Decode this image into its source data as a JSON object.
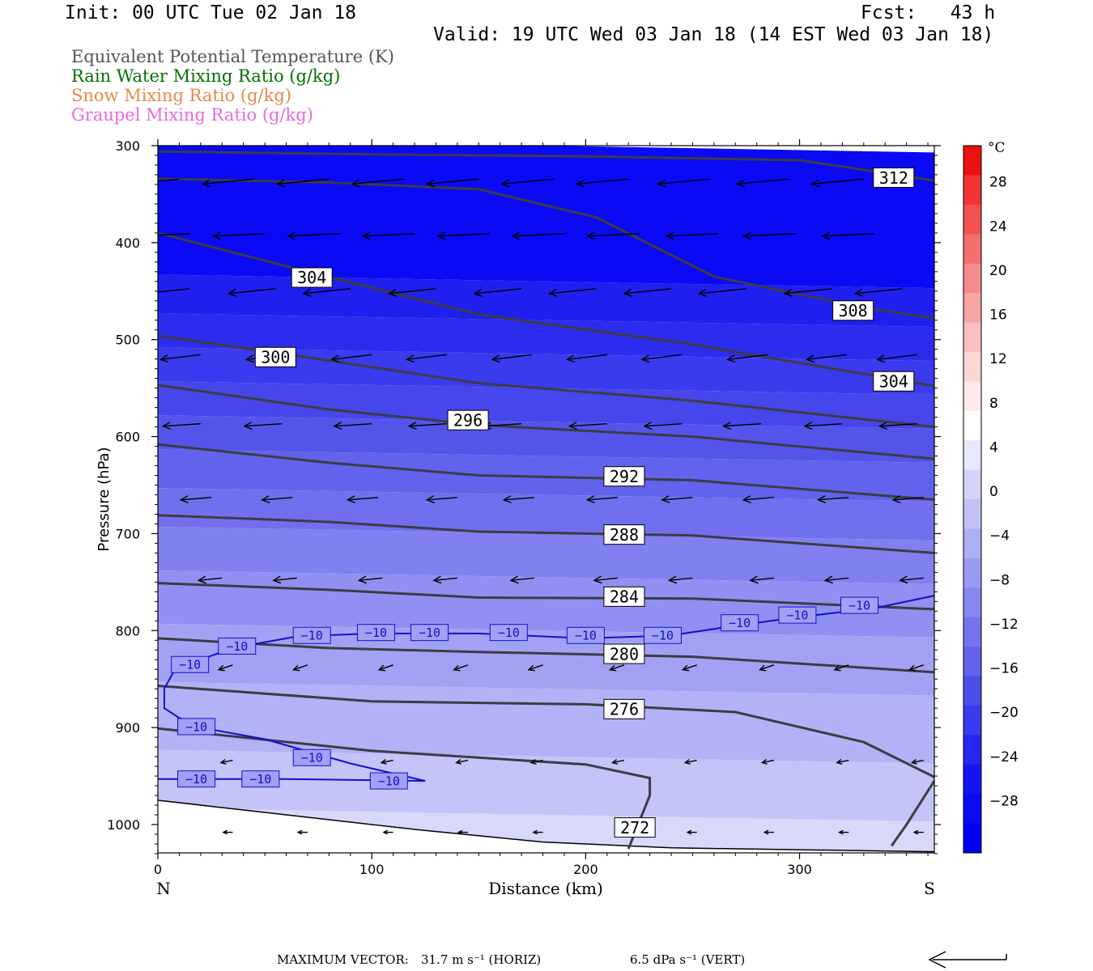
{
  "header": {
    "init": "Init: 00 UTC Tue 02 Jan 18",
    "fcst": "Fcst:   43 h",
    "valid": "Valid: 19 UTC Wed 03 Jan 18 (14 EST Wed 03 Jan 18)"
  },
  "legend": [
    {
      "label": "Equivalent Potential Temperature (K)",
      "color": "#555555"
    },
    {
      "label": "Rain Water Mixing Ratio (g/kg)",
      "color": "#007000"
    },
    {
      "label": "Snow Mixing Ratio (g/kg)",
      "color": "#e88848"
    },
    {
      "label": "Graupel Mixing Ratio (g/kg)",
      "color": "#e86ae0"
    }
  ],
  "footer": {
    "max_vector_label": "MAXIMUM VECTOR:",
    "horiz": "31.7 m s⁻¹ (HORIZ)",
    "vert": "6.5 dPa s⁻¹ (VERT)"
  },
  "chart_data": {
    "type": "heatmap",
    "xlabel": "Distance (km)",
    "ylabel": "Pressure (hPa)",
    "x_range": [
      0,
      363
    ],
    "y_range": [
      300,
      1030
    ],
    "x_ticks": [
      0,
      100,
      200,
      300
    ],
    "y_ticks": [
      300,
      400,
      500,
      600,
      700,
      800,
      900,
      1000
    ],
    "x_end_labels": {
      "left": "N",
      "right": "S"
    },
    "colorbar": {
      "unit": "°C",
      "labels": [
        28,
        24,
        20,
        16,
        12,
        8,
        4,
        0,
        -4,
        -8,
        -12,
        -16,
        -20,
        -24,
        -28
      ],
      "colors": [
        "#ee1010",
        "#f03434",
        "#f25252",
        "#f46e6e",
        "#f58a8a",
        "#f7a4a4",
        "#f9bebe",
        "#fbd6d6",
        "#fdeaea",
        "#ffffff",
        "#e8e8fc",
        "#d4d4f8",
        "#c2c2f6",
        "#aeaef4",
        "#9a9af2",
        "#8888f0",
        "#7474ee",
        "#6262ec",
        "#4e4eea",
        "#3a3aee",
        "#2626f0",
        "#1414f2",
        "#0a0af4",
        "#0000f6"
      ]
    },
    "background_temperature_bands": [
      {
        "p_top": 300,
        "p_bot": 440,
        "temp": -30,
        "color": "#0a0af4"
      },
      {
        "p_top": 440,
        "p_bot": 480,
        "temp": -28,
        "color": "#1f1ff0"
      },
      {
        "p_top": 480,
        "p_bot": 515,
        "temp": -26,
        "color": "#2c2cee"
      },
      {
        "p_top": 515,
        "p_bot": 550,
        "temp": -24,
        "color": "#3a3aee"
      },
      {
        "p_top": 550,
        "p_bot": 585,
        "temp": -22,
        "color": "#4646ec"
      },
      {
        "p_top": 585,
        "p_bot": 620,
        "temp": -20,
        "color": "#5454ea"
      },
      {
        "p_top": 620,
        "p_bot": 660,
        "temp": -18,
        "color": "#6262ec"
      },
      {
        "p_top": 660,
        "p_bot": 700,
        "temp": -16,
        "color": "#7070ee"
      },
      {
        "p_top": 700,
        "p_bot": 745,
        "temp": -14,
        "color": "#8080f0"
      },
      {
        "p_top": 745,
        "p_bot": 800,
        "temp": -12,
        "color": "#9090f2"
      },
      {
        "p_top": 800,
        "p_bot": 860,
        "temp": -10,
        "color": "#a2a2f4"
      },
      {
        "p_top": 860,
        "p_bot": 930,
        "temp": -8,
        "color": "#b2b2f6"
      },
      {
        "p_top": 930,
        "p_bot": 990,
        "temp": -6,
        "color": "#c4c4f8"
      },
      {
        "p_top": 990,
        "p_bot": 1030,
        "temp": -4,
        "color": "#d8d8fa"
      }
    ],
    "theta_e_contours": [
      {
        "value": 312,
        "points": [
          [
            0,
            306
          ],
          [
            100,
            309
          ],
          [
            200,
            311
          ],
          [
            300,
            315
          ],
          [
            363,
            336
          ]
        ],
        "label": "312",
        "label_pos": [
          344,
          333
        ]
      },
      {
        "value": 308,
        "points": [
          [
            0,
            334
          ],
          [
            80,
            338
          ],
          [
            150,
            345
          ],
          [
            205,
            374
          ],
          [
            260,
            435
          ],
          [
            330,
            467
          ],
          [
            363,
            478
          ]
        ],
        "label": "308",
        "label_pos": [
          325,
          470
        ]
      },
      {
        "value": 304,
        "points": [
          [
            0,
            390
          ],
          [
            70,
            430
          ],
          [
            150,
            474
          ],
          [
            250,
            505
          ],
          [
            363,
            548
          ]
        ],
        "label": "304",
        "label_pos": [
          72,
          436
        ],
        "label2": "304",
        "label2_pos": [
          344,
          543
        ]
      },
      {
        "value": 300,
        "points": [
          [
            0,
            496
          ],
          [
            60,
            515
          ],
          [
            150,
            545
          ],
          [
            250,
            563
          ],
          [
            363,
            590
          ]
        ],
        "label": "300",
        "label_pos": [
          55,
          518
        ]
      },
      {
        "value": 296,
        "points": [
          [
            0,
            547
          ],
          [
            80,
            572
          ],
          [
            150,
            588
          ],
          [
            250,
            600
          ],
          [
            363,
            623
          ]
        ],
        "label": "296",
        "label_pos": [
          145,
          583
        ]
      },
      {
        "value": 292,
        "points": [
          [
            0,
            608
          ],
          [
            80,
            627
          ],
          [
            150,
            640
          ],
          [
            250,
            645
          ],
          [
            363,
            665
          ]
        ],
        "label": "292",
        "label_pos": [
          218,
          641
        ]
      },
      {
        "value": 288,
        "points": [
          [
            0,
            681
          ],
          [
            80,
            688
          ],
          [
            150,
            698
          ],
          [
            250,
            702
          ],
          [
            363,
            720
          ]
        ],
        "label": "288",
        "label_pos": [
          218,
          701
        ]
      },
      {
        "value": 284,
        "points": [
          [
            0,
            751
          ],
          [
            80,
            758
          ],
          [
            150,
            766
          ],
          [
            250,
            767
          ],
          [
            363,
            778
          ]
        ],
        "label": "284",
        "label_pos": [
          218,
          765
        ]
      },
      {
        "value": 280,
        "points": [
          [
            0,
            808
          ],
          [
            80,
            818
          ],
          [
            150,
            822
          ],
          [
            250,
            827
          ],
          [
            363,
            843
          ]
        ],
        "label": "280",
        "label_pos": [
          218,
          824
        ]
      },
      {
        "value": 276,
        "points": [
          [
            0,
            857
          ],
          [
            100,
            873
          ],
          [
            200,
            876
          ],
          [
            270,
            884
          ],
          [
            330,
            915
          ],
          [
            363,
            951
          ]
        ],
        "label": "276",
        "label_pos": [
          218,
          881
        ]
      },
      {
        "value": 272,
        "points": [
          [
            0,
            901
          ],
          [
            100,
            924
          ],
          [
            200,
            938
          ],
          [
            230,
            952
          ],
          [
            230,
            970
          ],
          [
            220,
            1025
          ]
        ],
        "label": "272",
        "label_pos": [
          223,
          1003
        ]
      },
      {
        "value": 272,
        "points": [
          [
            363,
            955
          ],
          [
            350,
            1000
          ],
          [
            343,
            1022
          ]
        ],
        "label": "",
        "label_pos": null
      }
    ],
    "isotherm_minus10": {
      "value": -10,
      "upper_points": [
        [
          3,
          860
        ],
        [
          8,
          840
        ],
        [
          20,
          830
        ],
        [
          35,
          818
        ],
        [
          65,
          806
        ],
        [
          100,
          803
        ],
        [
          150,
          803
        ],
        [
          200,
          808
        ],
        [
          240,
          805
        ],
        [
          270,
          795
        ],
        [
          300,
          786
        ],
        [
          335,
          777
        ],
        [
          363,
          764
        ]
      ],
      "lower_points_a": [
        [
          3,
          860
        ],
        [
          3,
          880
        ],
        [
          10,
          890
        ],
        [
          20,
          900
        ],
        [
          50,
          912
        ],
        [
          90,
          937
        ],
        [
          125,
          955
        ]
      ],
      "lower_points_b": [
        [
          0,
          953
        ],
        [
          60,
          953
        ],
        [
          125,
          955
        ]
      ],
      "labels": [
        [
          15,
          835
        ],
        [
          37,
          816
        ],
        [
          72,
          805
        ],
        [
          102,
          802
        ],
        [
          127,
          802
        ],
        [
          164,
          802
        ],
        [
          200,
          805
        ],
        [
          236,
          805
        ],
        [
          272,
          792
        ],
        [
          299,
          784
        ],
        [
          328,
          774
        ],
        [
          18,
          899
        ],
        [
          72,
          931
        ],
        [
          18,
          953
        ],
        [
          48,
          953
        ],
        [
          108,
          955
        ]
      ]
    },
    "ground_line": [
      [
        0,
        975
      ],
      [
        60,
        990
      ],
      [
        120,
        1005
      ],
      [
        180,
        1018
      ],
      [
        240,
        1024
      ],
      [
        363,
        1028
      ]
    ],
    "wind_vectors": [
      {
        "p": 337,
        "xs": [
          10,
          45,
          80,
          115,
          150,
          185,
          220,
          258,
          295,
          330
        ],
        "du": -22,
        "dv": 2
      },
      {
        "p": 392,
        "xs": [
          15,
          50,
          85,
          120,
          155,
          190,
          225,
          262,
          298,
          335
        ],
        "du": -22,
        "dv": 1
      },
      {
        "p": 450,
        "xs": [
          15,
          55,
          90,
          130,
          170,
          205,
          240,
          275,
          315,
          348
        ],
        "du": -20,
        "dv": 2
      },
      {
        "p": 518,
        "xs": [
          20,
          60,
          100,
          135,
          175,
          210,
          245,
          285,
          322,
          355
        ],
        "du": -17,
        "dv": 2
      },
      {
        "p": 588,
        "xs": [
          20,
          58,
          100,
          135,
          170,
          210,
          245,
          282,
          320,
          355
        ],
        "du": -16,
        "dv": 1
      },
      {
        "p": 664,
        "xs": [
          25,
          63,
          103,
          140,
          176,
          215,
          250,
          288,
          323,
          358
        ],
        "du": -13,
        "dv": 1
      },
      {
        "p": 747,
        "xs": [
          30,
          65,
          105,
          140,
          176,
          215,
          250,
          288,
          323,
          358
        ],
        "du": -10,
        "dv": 1
      },
      {
        "p": 838,
        "xs": [
          35,
          70,
          110,
          145,
          180,
          218,
          252,
          288,
          323,
          358
        ],
        "du": -6,
        "dv": 2
      },
      {
        "p": 935,
        "xs": [
          35,
          70,
          110,
          145,
          180,
          218,
          252,
          288,
          323,
          358
        ],
        "du": -5,
        "dv": 1
      },
      {
        "p": 1008,
        "xs": [
          35,
          70,
          110,
          145,
          180,
          218,
          252,
          288,
          323,
          358
        ],
        "du": -4,
        "dv": 0
      }
    ]
  }
}
